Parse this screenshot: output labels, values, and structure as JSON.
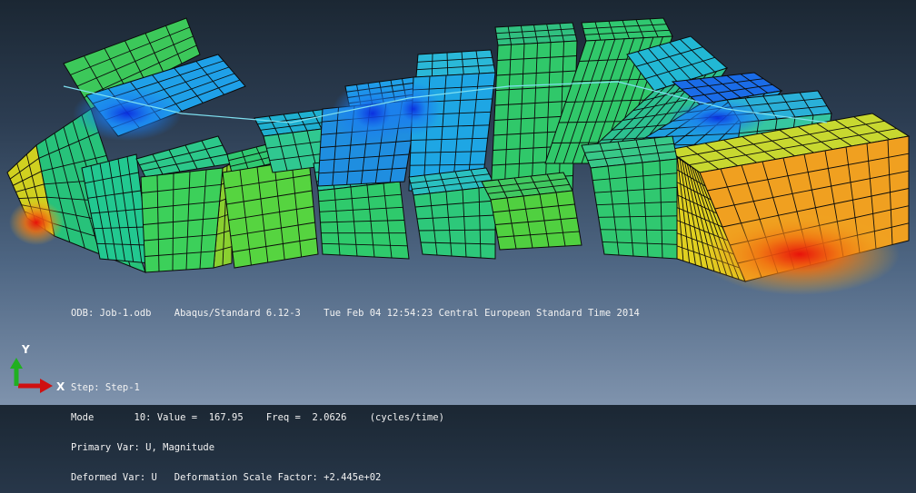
{
  "colors": {
    "background_top": "#1b2733",
    "background_bottom": "#7f93ad",
    "contour_low": "#0a2be0",
    "contour_high": "#e8120a",
    "axis_x": "#d01010",
    "axis_y": "#20b020"
  },
  "info": {
    "odb_line": "ODB: Job-1.odb    Abaqus/Standard 6.12-3    Tue Feb 04 12:54:23 Central European Standard Time 2014",
    "step": "Step: Step-1",
    "mode": "Mode       10: Value =  167.95    Freq =  2.0626    (cycles/time)",
    "primary_var": "Primary Var: U, Magnitude",
    "deformed_var": "Deformed Var: U   Deformation Scale Factor: +2.445e+02"
  },
  "triad": {
    "x_label": "X",
    "y_label": "Y"
  }
}
